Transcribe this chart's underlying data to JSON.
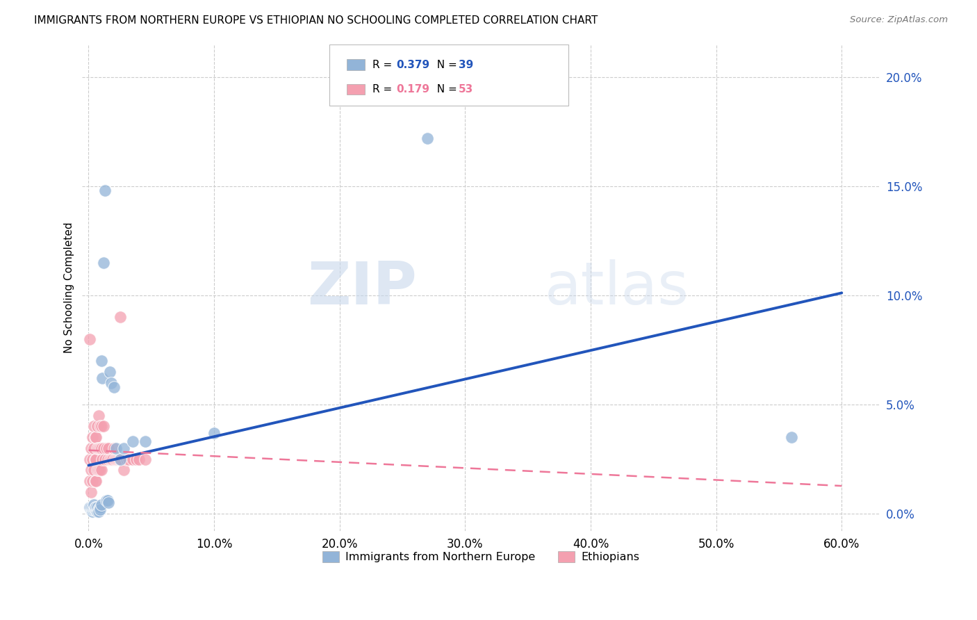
{
  "title": "IMMIGRANTS FROM NORTHERN EUROPE VS ETHIOPIAN NO SCHOOLING COMPLETED CORRELATION CHART",
  "source": "Source: ZipAtlas.com",
  "ylabel": "No Schooling Completed",
  "legend_series1_label": "Immigrants from Northern Europe",
  "legend_series2_label": "Ethiopians",
  "R1": "0.379",
  "N1": "39",
  "R2": "0.179",
  "N2": "53",
  "blue_color": "#92B4D8",
  "pink_color": "#F4A0B0",
  "blue_line_color": "#2255BB",
  "pink_line_color": "#EE7799",
  "watermark_zip": "ZIP",
  "watermark_atlas": "atlas",
  "xlim": [
    -0.005,
    0.63
  ],
  "ylim": [
    -0.008,
    0.215
  ],
  "xtick_values": [
    0.0,
    0.1,
    0.2,
    0.3,
    0.4,
    0.5,
    0.6
  ],
  "ytick_values": [
    0.0,
    0.05,
    0.1,
    0.15,
    0.2
  ],
  "blue_x": [
    0.001,
    0.002,
    0.002,
    0.003,
    0.003,
    0.003,
    0.004,
    0.004,
    0.004,
    0.005,
    0.005,
    0.006,
    0.006,
    0.007,
    0.007,
    0.007,
    0.008,
    0.008,
    0.009,
    0.009,
    0.01,
    0.01,
    0.011,
    0.012,
    0.013,
    0.014,
    0.015,
    0.016,
    0.017,
    0.018,
    0.02,
    0.022,
    0.025,
    0.028,
    0.035,
    0.045,
    0.1,
    0.27,
    0.56
  ],
  "blue_y": [
    0.003,
    0.002,
    0.003,
    0.001,
    0.002,
    0.003,
    0.002,
    0.003,
    0.004,
    0.002,
    0.003,
    0.002,
    0.003,
    0.002,
    0.001,
    0.003,
    0.002,
    0.001,
    0.003,
    0.002,
    0.07,
    0.004,
    0.062,
    0.115,
    0.148,
    0.006,
    0.006,
    0.005,
    0.065,
    0.06,
    0.058,
    0.03,
    0.025,
    0.03,
    0.033,
    0.033,
    0.037,
    0.172,
    0.035
  ],
  "pink_x": [
    0.001,
    0.001,
    0.002,
    0.002,
    0.002,
    0.003,
    0.003,
    0.003,
    0.004,
    0.004,
    0.004,
    0.005,
    0.005,
    0.005,
    0.006,
    0.006,
    0.006,
    0.007,
    0.007,
    0.007,
    0.008,
    0.008,
    0.008,
    0.009,
    0.009,
    0.009,
    0.01,
    0.01,
    0.01,
    0.011,
    0.012,
    0.012,
    0.013,
    0.014,
    0.015,
    0.016,
    0.017,
    0.018,
    0.019,
    0.02,
    0.021,
    0.022,
    0.023,
    0.024,
    0.025,
    0.026,
    0.028,
    0.03,
    0.032,
    0.035,
    0.038,
    0.04,
    0.045
  ],
  "pink_y": [
    0.015,
    0.025,
    0.01,
    0.02,
    0.03,
    0.015,
    0.025,
    0.035,
    0.02,
    0.03,
    0.04,
    0.015,
    0.025,
    0.035,
    0.015,
    0.025,
    0.035,
    0.02,
    0.03,
    0.04,
    0.02,
    0.03,
    0.045,
    0.02,
    0.03,
    0.04,
    0.02,
    0.03,
    0.04,
    0.025,
    0.03,
    0.04,
    0.025,
    0.03,
    0.025,
    0.03,
    0.025,
    0.025,
    0.025,
    0.03,
    0.025,
    0.025,
    0.025,
    0.025,
    0.025,
    0.025,
    0.02,
    0.025,
    0.025,
    0.025,
    0.025,
    0.025,
    0.025
  ],
  "pink_outlier_x": [
    0.001
  ],
  "pink_outlier_y": [
    0.08
  ],
  "pink_outlier2_x": [
    0.025
  ],
  "pink_outlier2_y": [
    0.09
  ]
}
